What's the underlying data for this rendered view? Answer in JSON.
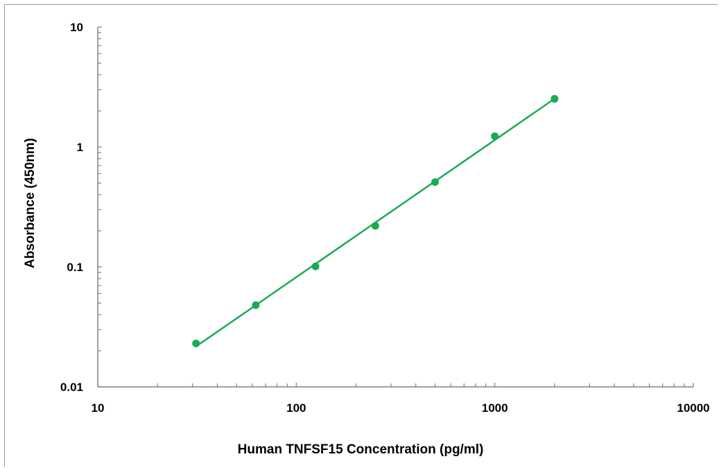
{
  "chart_data": {
    "type": "scatter",
    "xlabel": "Human TNFSF15 Concentration (pg/ml)",
    "ylabel": "Absorbance (450nm)",
    "x_scale": "log",
    "y_scale": "log",
    "xlim": [
      10,
      10000
    ],
    "ylim": [
      0.01,
      10
    ],
    "x_ticks": [
      "10",
      "100",
      "1000",
      "10000"
    ],
    "y_ticks": [
      "0.01",
      "0.1",
      "1",
      "10"
    ],
    "grid": false,
    "legend": "none",
    "series": [
      {
        "x": [
          31.25,
          62.5,
          125,
          250,
          500,
          1000,
          2000
        ],
        "y": [
          0.023,
          0.048,
          0.101,
          0.22,
          0.51,
          1.23,
          2.52
        ],
        "color": "#1aaa55",
        "marker": "circle",
        "trendline": "power fit"
      }
    ]
  }
}
